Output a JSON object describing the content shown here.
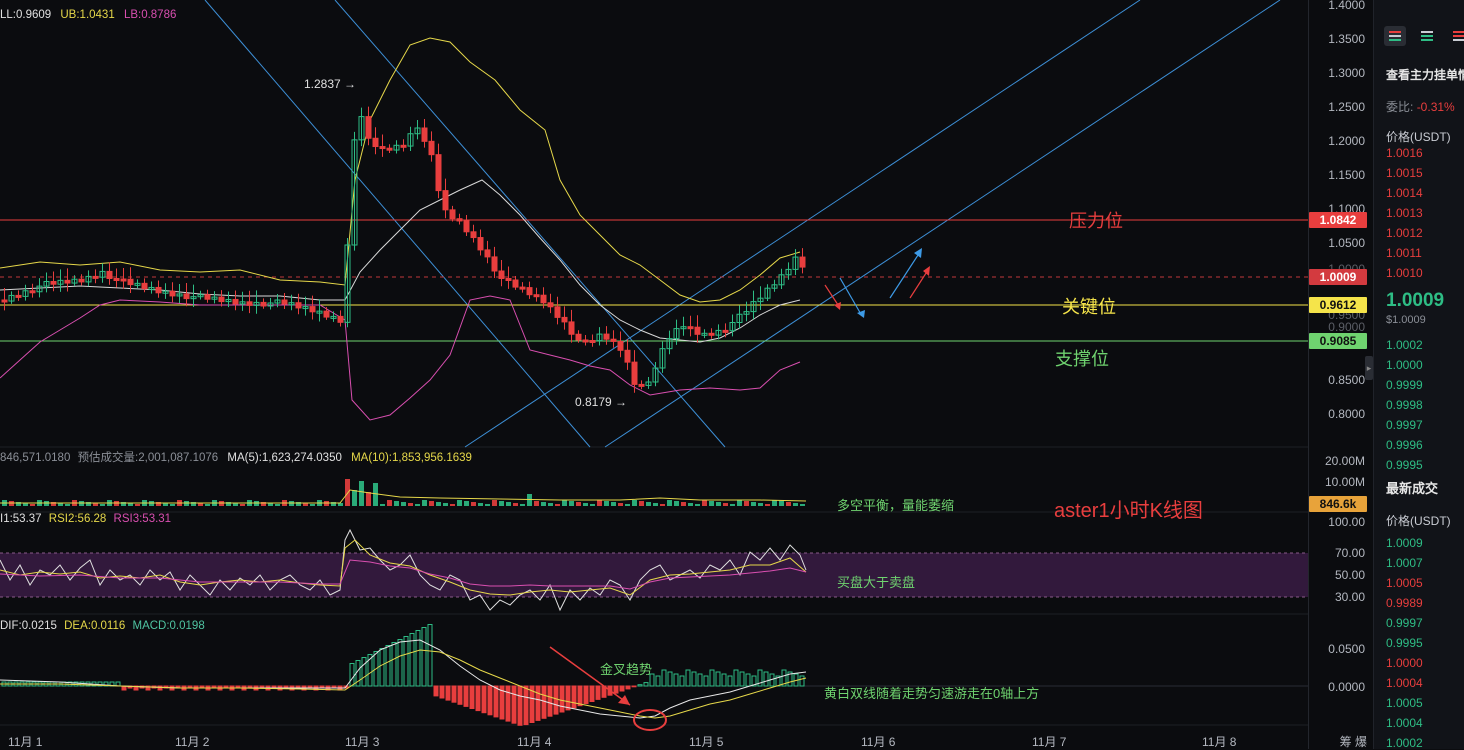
{
  "main_chart": {
    "legend": {
      "middle": "LL:0.9609",
      "upper": "UB:1.0431",
      "lower": "LB:0.8786"
    },
    "y_ticks": [
      "1.4000",
      "1.3500",
      "1.3000",
      "1.2500",
      "1.2000",
      "1.1500",
      "1.1000",
      "1.0500",
      "1.0000",
      "0.9500",
      "0.9000",
      "0.8500",
      "0.8000"
    ],
    "high_label": "1.2837 →",
    "low_label": "0.8179 →",
    "price_tags": {
      "resistance": "1.0842",
      "current": "1.0009",
      "key": "0.9612",
      "support": "0.9085"
    },
    "annotations": {
      "resistance": "压力位",
      "key": "关键位",
      "support": "支撑位",
      "title": "aster1小时K线图"
    },
    "colors": {
      "resistance": "#e83e3e",
      "key": "#f5e44a",
      "support": "#6fd36f",
      "channel": "#3d8fd6"
    }
  },
  "volume_pane": {
    "legend": {
      "vol": "846,571.0180",
      "est_label": "预估成交量:",
      "est": "2,001,087.1076",
      "ma5": "MA(5):1,623,274.0350",
      "ma10": "MA(10):1,853,956.1639"
    },
    "y_ticks": [
      "20.00M",
      "10.00M"
    ],
    "tag": "846.6k",
    "annotation": "多空平衡，量能萎缩"
  },
  "rsi_pane": {
    "legend": {
      "rsi1": "I1:53.37",
      "rsi2": "RSI2:56.28",
      "rsi3": "RSI3:53.31"
    },
    "y_ticks": [
      "100.00",
      "70.00",
      "50.00",
      "30.00"
    ],
    "annotation": "买盘大于卖盘"
  },
  "macd_pane": {
    "legend": {
      "dif": "DIF:0.0215",
      "dea": "DEA:0.0116",
      "macd": "MACD:0.0198"
    },
    "y_ticks": [
      "0.0500",
      "0.0000"
    ],
    "annotation_cross": "金叉趋势",
    "annotation_lines": "黄白双线随着走势匀速游走在0轴上方"
  },
  "x_axis": {
    "labels": [
      "11月 1",
      "11月 2",
      "11月 3",
      "11月 4",
      "11月 5",
      "11月 6",
      "11月 7",
      "11月 8"
    ],
    "right": "筹  爆"
  },
  "sidepanel": {
    "title": "查看主力挂单情",
    "ratio_label": "委比:",
    "ratio_value": "-0.31%",
    "price_header": "价格(USDT)",
    "asks": [
      "1.0016",
      "1.0015",
      "1.0014",
      "1.0013",
      "1.0012",
      "1.0011",
      "1.0010"
    ],
    "last_price": "1.0009",
    "last_usd": "$1.0009",
    "bids": [
      "1.0002",
      "1.0000",
      "0.9999",
      "0.9998",
      "0.9997",
      "0.9996",
      "0.9995"
    ],
    "trades_title": "最新成交",
    "trades_header": "价格(USDT)",
    "trades": [
      {
        "p": "1.0009",
        "c": "up"
      },
      {
        "p": "1.0007",
        "c": "up"
      },
      {
        "p": "1.0005",
        "c": "down"
      },
      {
        "p": "0.9989",
        "c": "down"
      },
      {
        "p": "0.9997",
        "c": "up"
      },
      {
        "p": "0.9995",
        "c": "up"
      },
      {
        "p": "1.0000",
        "c": "down"
      },
      {
        "p": "1.0004",
        "c": "down"
      },
      {
        "p": "1.0005",
        "c": "up"
      },
      {
        "p": "1.0004",
        "c": "up"
      },
      {
        "p": "1.0002",
        "c": "up"
      }
    ]
  }
}
